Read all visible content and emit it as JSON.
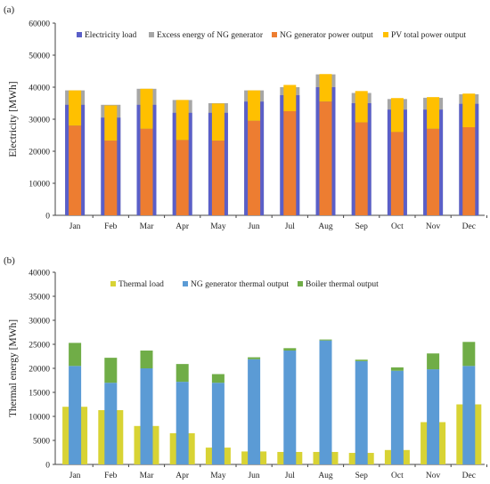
{
  "panel_a_label": "(a)",
  "panel_b_label": "(b)",
  "colors": {
    "electricity_load": "#5a5fc8",
    "excess_ng": "#a6a6a6",
    "ng_power": "#ed7d31",
    "pv_power": "#ffc000",
    "thermal_load": "#d8d334",
    "ng_thermal": "#5b9bd5",
    "boiler_thermal": "#70ad47",
    "axis": "#444444"
  },
  "chart_data": [
    {
      "type": "bar",
      "panel": "a",
      "ylabel": "Electricity [MWh]",
      "ylim": [
        0,
        60000
      ],
      "yticks": [
        0,
        10000,
        20000,
        30000,
        40000,
        50000,
        60000
      ],
      "grid": false,
      "legend_position": "top",
      "categories": [
        "Jan",
        "Feb",
        "Mar",
        "Apr",
        "May",
        "Jun",
        "Jul",
        "Aug",
        "Sep",
        "Oct",
        "Nov",
        "Dec"
      ],
      "series": [
        {
          "name": "Electricity load",
          "color_key": "electricity_load",
          "values": [
            34500,
            30500,
            34500,
            32000,
            32000,
            35500,
            37500,
            40000,
            35000,
            33000,
            33000,
            34800
          ]
        },
        {
          "name": "Excess energy of NG generator",
          "color_key": "excess_ng",
          "values": [
            39000,
            34500,
            39500,
            36000,
            35000,
            39000,
            40000,
            44000,
            38200,
            36300,
            36700,
            37800
          ]
        },
        {
          "name": "NG generator power output",
          "color_key": "ng_power",
          "values": [
            28000,
            23300,
            27000,
            23500,
            23300,
            29500,
            32500,
            35500,
            29000,
            26000,
            27000,
            27500
          ]
        },
        {
          "name": "PV total power output",
          "color_key": "pv_power",
          "values": [
            11000,
            11000,
            12500,
            12500,
            11600,
            9500,
            8200,
            8600,
            9800,
            10600,
            9900,
            10500
          ]
        }
      ]
    },
    {
      "type": "bar",
      "panel": "b",
      "ylabel": "Thermal energy [MWh]",
      "ylim": [
        0,
        40000
      ],
      "yticks": [
        0,
        5000,
        10000,
        15000,
        20000,
        25000,
        30000,
        35000,
        40000
      ],
      "grid": false,
      "legend_position": "top",
      "categories": [
        "Jan",
        "Feb",
        "Mar",
        "Apr",
        "May",
        "Jun",
        "Jul",
        "Aug",
        "Sep",
        "Oct",
        "Nov",
        "Dec"
      ],
      "series": [
        {
          "name": "Thermal load",
          "color_key": "thermal_load",
          "values": [
            12000,
            11300,
            8000,
            6500,
            3500,
            2700,
            2600,
            2600,
            2400,
            3000,
            8800,
            12500
          ]
        },
        {
          "name": "NG generator thermal output",
          "color_key": "ng_thermal",
          "values": [
            20500,
            17000,
            20000,
            17200,
            17000,
            21900,
            23700,
            25800,
            21500,
            19500,
            19800,
            20500
          ]
        },
        {
          "name": "Boiler thermal output",
          "color_key": "boiler_thermal",
          "values": [
            4800,
            5200,
            3700,
            3700,
            1800,
            400,
            500,
            200,
            300,
            700,
            3300,
            5000
          ]
        }
      ]
    }
  ]
}
